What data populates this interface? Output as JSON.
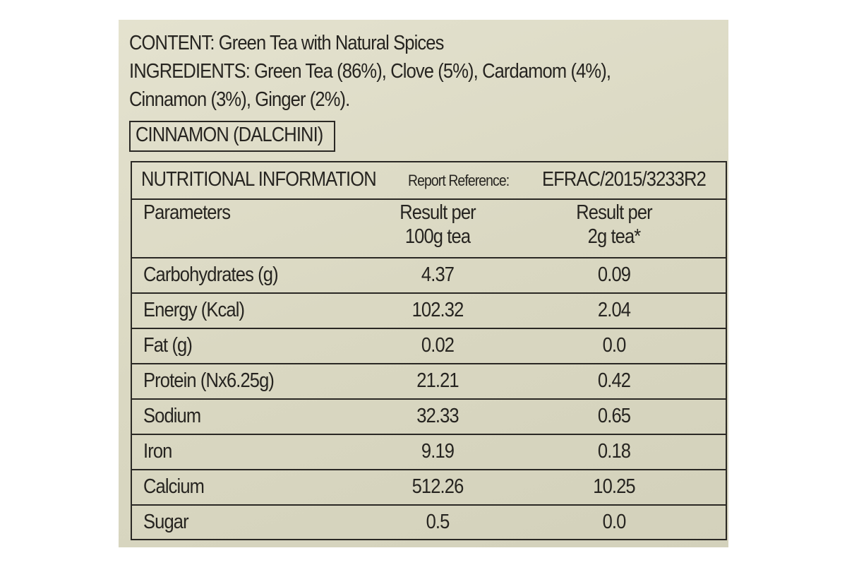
{
  "content": "CONTENT: Green Tea with Natural Spices",
  "ingredients": [
    "INGREDIENTS: Green Tea (86%), Clove (5%), Cardamom (4%),",
    "Cinnamon (3%), Ginger (2%)."
  ],
  "tag": "CINNAMON (DALCHINI)",
  "table": {
    "title": "NUTRITIONAL INFORMATION",
    "report_label": "Report Reference:",
    "report_ref": "EFRAC/2015/3233R2",
    "header": [
      [
        "Parameters"
      ],
      [
        "Result per",
        "100g tea"
      ],
      [
        "Result per",
        "2g tea*"
      ]
    ],
    "rows": [
      [
        "Carbohydrates (g)",
        "4.37",
        "0.09"
      ],
      [
        "Energy (Kcal)",
        "102.32",
        "2.04"
      ],
      [
        "Fat (g)",
        "0.02",
        "0.0"
      ],
      [
        "Protein (Nx6.25g)",
        "21.21",
        "0.42"
      ],
      [
        "Sodium",
        "32.33",
        "0.65"
      ],
      [
        "Iron",
        "9.19",
        "0.18"
      ],
      [
        "Calcium",
        "512.26",
        "10.25"
      ],
      [
        "Sugar",
        "0.5",
        "0.0"
      ]
    ]
  }
}
